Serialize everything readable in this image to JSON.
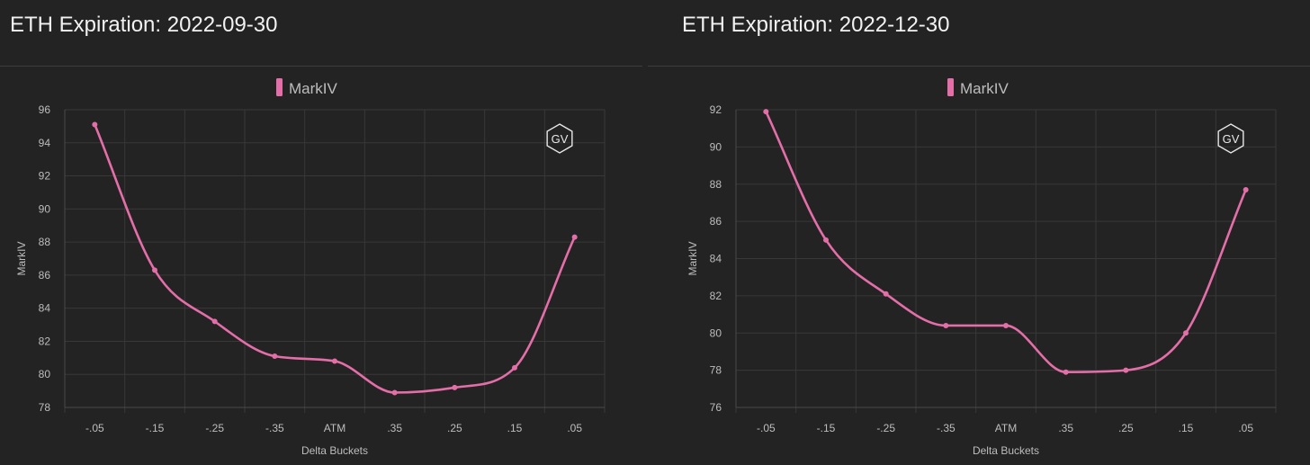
{
  "chart_data": [
    {
      "type": "line",
      "title": "ETH Expiration: 2022-09-30",
      "xlabel": "Delta Buckets",
      "ylabel": "MarkIV",
      "categories": [
        "-.05",
        "-.15",
        "-.25",
        "-.35",
        "ATM",
        ".35",
        ".25",
        ".15",
        ".05"
      ],
      "series": [
        {
          "name": "MarkIV",
          "values": [
            95.1,
            86.3,
            83.2,
            81.1,
            80.8,
            78.9,
            79.2,
            80.4,
            88.3
          ]
        }
      ],
      "ylim": [
        78,
        96
      ],
      "yticks": [
        78,
        80,
        82,
        84,
        86,
        88,
        90,
        92,
        94,
        96
      ],
      "grid": true,
      "legend": "top-center",
      "color": "#e46ea8",
      "watermark": "GV"
    },
    {
      "type": "line",
      "title": "ETH Expiration: 2022-12-30",
      "xlabel": "Delta Buckets",
      "ylabel": "MarkIV",
      "categories": [
        "-.05",
        "-.15",
        "-.25",
        "-.35",
        "ATM",
        ".35",
        ".25",
        ".15",
        ".05"
      ],
      "series": [
        {
          "name": "MarkIV",
          "values": [
            91.9,
            85.0,
            82.1,
            80.4,
            80.4,
            77.9,
            78.0,
            80.0,
            87.7
          ]
        }
      ],
      "ylim": [
        76,
        92
      ],
      "yticks": [
        76,
        78,
        80,
        82,
        84,
        86,
        88,
        90,
        92
      ],
      "grid": true,
      "legend": "top-center",
      "color": "#e46ea8",
      "watermark": "GV"
    }
  ]
}
